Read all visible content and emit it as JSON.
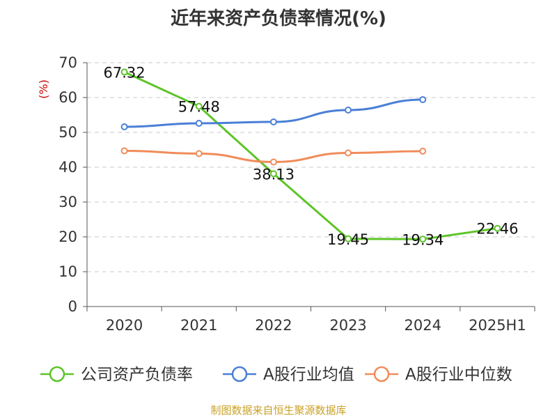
{
  "chart_data": {
    "type": "line",
    "title": "近年来资产负债率情况(%)",
    "ylabel": "(%)",
    "xlabel": "",
    "categories": [
      "2020",
      "2021",
      "2022",
      "2023",
      "2024",
      "2025H1"
    ],
    "ylim": [
      0,
      70
    ],
    "yticks": [
      0,
      10,
      20,
      30,
      40,
      50,
      60,
      70
    ],
    "grid": true,
    "legend_position": "bottom",
    "series": [
      {
        "name": "公司资产负债率",
        "color": "#5dc428",
        "values": [
          67.32,
          57.48,
          38.13,
          19.45,
          19.34,
          22.46
        ],
        "labels": [
          "67.32",
          "57.48",
          "38.13",
          "19.45",
          "19.34",
          "22.46"
        ]
      },
      {
        "name": "A股行业均值",
        "color": "#4a7fd6",
        "values": [
          51.6,
          52.6,
          53.0,
          56.4,
          59.4,
          null
        ]
      },
      {
        "name": "A股行业中位数",
        "color": "#f08c5a",
        "values": [
          44.7,
          43.9,
          41.5,
          44.1,
          44.6,
          null
        ]
      }
    ],
    "source": "制图数据来自恒生聚源数据库"
  }
}
